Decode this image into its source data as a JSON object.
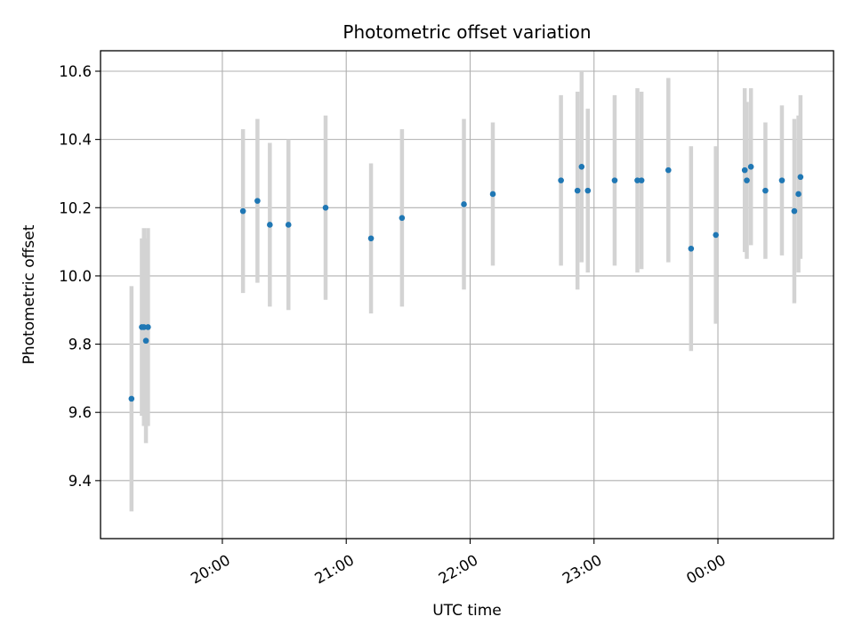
{
  "chart_data": {
    "type": "scatter",
    "title": "Photometric offset variation",
    "xlabel": "UTC time",
    "ylabel": "Photometric offset",
    "x_tick_labels": [
      "20:00",
      "21:00",
      "22:00",
      "23:00",
      "00:00"
    ],
    "y_tick_labels": [
      "9.4",
      "9.6",
      "9.8",
      "10.0",
      "10.2",
      "10.4",
      "10.6"
    ],
    "ylim": [
      9.23,
      10.66
    ],
    "xlim": [
      "19:01",
      "00:56"
    ],
    "grid": true,
    "legend": "none",
    "colors": {
      "marker": "#1f77b4",
      "errorbar": "#d3d3d3",
      "grid": "#b0b0b0"
    },
    "points": [
      {
        "time": "19:16",
        "value": 9.64,
        "err": 0.33
      },
      {
        "time": "19:21",
        "value": 9.85,
        "err": 0.26
      },
      {
        "time": "19:22",
        "value": 9.85,
        "err": 0.29
      },
      {
        "time": "19:23",
        "value": 9.81,
        "err": 0.3
      },
      {
        "time": "19:24",
        "value": 9.85,
        "err": 0.29
      },
      {
        "time": "20:10",
        "value": 10.19,
        "err": 0.24
      },
      {
        "time": "20:17",
        "value": 10.22,
        "err": 0.24
      },
      {
        "time": "20:23",
        "value": 10.15,
        "err": 0.24
      },
      {
        "time": "20:32",
        "value": 10.15,
        "err": 0.25
      },
      {
        "time": "20:50",
        "value": 10.2,
        "err": 0.27
      },
      {
        "time": "21:12",
        "value": 10.11,
        "err": 0.22
      },
      {
        "time": "21:27",
        "value": 10.17,
        "err": 0.26
      },
      {
        "time": "21:57",
        "value": 10.21,
        "err": 0.25
      },
      {
        "time": "22:11",
        "value": 10.24,
        "err": 0.21
      },
      {
        "time": "22:44",
        "value": 10.28,
        "err": 0.25
      },
      {
        "time": "22:52",
        "value": 10.25,
        "err": 0.29
      },
      {
        "time": "22:54",
        "value": 10.32,
        "err": 0.28
      },
      {
        "time": "22:57",
        "value": 10.25,
        "err": 0.24
      },
      {
        "time": "23:10",
        "value": 10.28,
        "err": 0.25
      },
      {
        "time": "23:21",
        "value": 10.28,
        "err": 0.27
      },
      {
        "time": "23:23",
        "value": 10.28,
        "err": 0.26
      },
      {
        "time": "23:36",
        "value": 10.31,
        "err": 0.27
      },
      {
        "time": "23:47",
        "value": 10.08,
        "err": 0.3
      },
      {
        "time": "23:59",
        "value": 10.12,
        "err": 0.26
      },
      {
        "time": "00:13",
        "value": 10.31,
        "err": 0.24
      },
      {
        "time": "00:14",
        "value": 10.28,
        "err": 0.23
      },
      {
        "time": "00:16",
        "value": 10.32,
        "err": 0.23
      },
      {
        "time": "00:23",
        "value": 10.25,
        "err": 0.2
      },
      {
        "time": "00:31",
        "value": 10.28,
        "err": 0.22
      },
      {
        "time": "00:37",
        "value": 10.19,
        "err": 0.27
      },
      {
        "time": "00:39",
        "value": 10.24,
        "err": 0.23
      },
      {
        "time": "00:40",
        "value": 10.29,
        "err": 0.24
      }
    ]
  }
}
